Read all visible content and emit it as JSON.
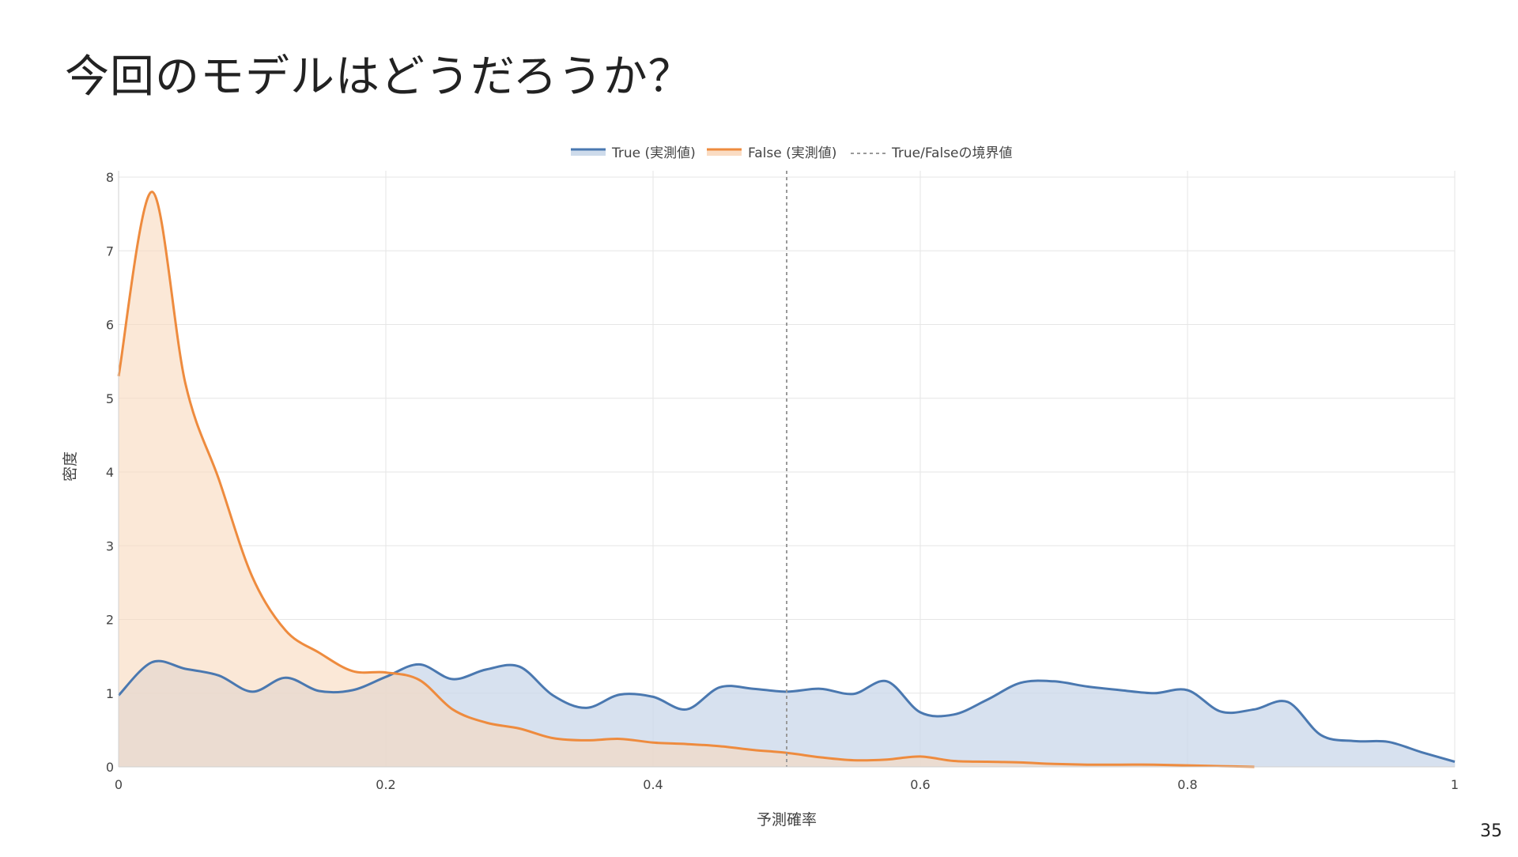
{
  "slide": {
    "title": "今回のモデルはどうだろうか？",
    "page_number": "35"
  },
  "colors": {
    "true_line": "#4a78b0",
    "true_fill": "#c9d7e9",
    "false_line": "#ee8b3e",
    "false_fill": "#f9d8bd",
    "threshold": "#9a9a9a",
    "grid": "#e6e6e6",
    "axis_text": "#444444"
  },
  "chart_data": {
    "type": "area",
    "title": "",
    "xlabel": "予測確率",
    "ylabel": "密度",
    "xlim": [
      0,
      1
    ],
    "ylim": [
      0,
      8
    ],
    "x_ticks": [
      "0",
      "0.2",
      "0.4",
      "0.6",
      "0.8",
      "1"
    ],
    "y_ticks": [
      "0",
      "1",
      "2",
      "3",
      "4",
      "5",
      "6",
      "7",
      "8"
    ],
    "grid": true,
    "legend_position": "top-center",
    "threshold": {
      "name": "True/Falseの境界値",
      "x": 0.5,
      "style": "dashed"
    },
    "series": [
      {
        "name": "True (実測値)",
        "x": [
          0,
          0.025,
          0.05,
          0.075,
          0.1,
          0.125,
          0.15,
          0.175,
          0.2,
          0.225,
          0.25,
          0.275,
          0.3,
          0.325,
          0.35,
          0.375,
          0.4,
          0.425,
          0.45,
          0.475,
          0.5,
          0.525,
          0.55,
          0.575,
          0.6,
          0.625,
          0.65,
          0.675,
          0.7,
          0.725,
          0.75,
          0.775,
          0.8,
          0.825,
          0.85,
          0.875,
          0.9,
          0.925,
          0.95,
          0.975,
          1.0
        ],
        "values": [
          0.97,
          1.42,
          1.33,
          1.24,
          1.02,
          1.21,
          1.03,
          1.04,
          1.22,
          1.39,
          1.19,
          1.32,
          1.36,
          0.97,
          0.8,
          0.98,
          0.95,
          0.78,
          1.08,
          1.06,
          1.02,
          1.06,
          0.99,
          1.16,
          0.74,
          0.71,
          0.91,
          1.14,
          1.16,
          1.09,
          1.04,
          1.0,
          1.04,
          0.75,
          0.78,
          0.88,
          0.43,
          0.35,
          0.34,
          0.2,
          0.07
        ]
      },
      {
        "name": "False (実測値)",
        "x": [
          0,
          0.025,
          0.05,
          0.075,
          0.1,
          0.125,
          0.15,
          0.175,
          0.2,
          0.225,
          0.25,
          0.275,
          0.3,
          0.325,
          0.35,
          0.375,
          0.4,
          0.425,
          0.45,
          0.475,
          0.5,
          0.525,
          0.55,
          0.575,
          0.6,
          0.625,
          0.65,
          0.675,
          0.7,
          0.725,
          0.75,
          0.775,
          0.8,
          0.825,
          0.85
        ],
        "values": [
          5.3,
          7.8,
          5.2,
          3.9,
          2.58,
          1.85,
          1.55,
          1.3,
          1.28,
          1.18,
          0.78,
          0.6,
          0.52,
          0.39,
          0.36,
          0.38,
          0.33,
          0.31,
          0.28,
          0.23,
          0.19,
          0.13,
          0.09,
          0.1,
          0.14,
          0.08,
          0.07,
          0.06,
          0.04,
          0.03,
          0.03,
          0.03,
          0.02,
          0.01,
          0.0
        ]
      }
    ]
  }
}
